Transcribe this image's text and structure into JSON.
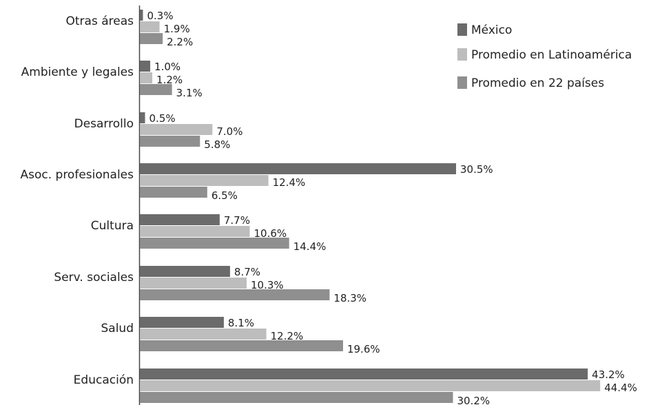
{
  "chart_data": {
    "type": "bar",
    "orientation": "horizontal",
    "categories": [
      "Otras áreas",
      "Ambiente y legales",
      "Desarrollo",
      "Asoc. profesionales",
      "Cultura",
      "Serv. sociales",
      "Salud",
      "Educación"
    ],
    "series": [
      {
        "name": "México",
        "color": "#6b6b6b",
        "values": [
          0.3,
          1.0,
          0.5,
          30.5,
          7.7,
          8.7,
          8.1,
          43.2
        ],
        "labels": [
          "0.3%",
          "1.0%",
          "0.5%",
          "30.5%",
          "7.7%",
          "8.7%",
          "8.1%",
          "43.2%"
        ]
      },
      {
        "name": "Promedio en Latinoamérica",
        "color": "#bdbdbd",
        "values": [
          1.9,
          1.2,
          7.0,
          12.4,
          10.6,
          10.3,
          12.2,
          44.4
        ],
        "labels": [
          "1.9%",
          "1.2%",
          "7.0%",
          "12.4%",
          "10.6%",
          "10.3%",
          "12.2%",
          "44.4%"
        ]
      },
      {
        "name": "Promedio en 22 países",
        "color": "#8f8f8f",
        "values": [
          2.2,
          3.1,
          5.8,
          6.5,
          14.4,
          18.3,
          19.6,
          30.2
        ],
        "labels": [
          "2.2%",
          "3.1%",
          "5.8%",
          "6.5%",
          "14.4%",
          "18.3%",
          "19.6%",
          "30.2%"
        ]
      }
    ],
    "title": "",
    "xlabel": "",
    "ylabel": "",
    "xlim": [
      0,
      45
    ],
    "grid": false,
    "legend_position": "top-right"
  }
}
